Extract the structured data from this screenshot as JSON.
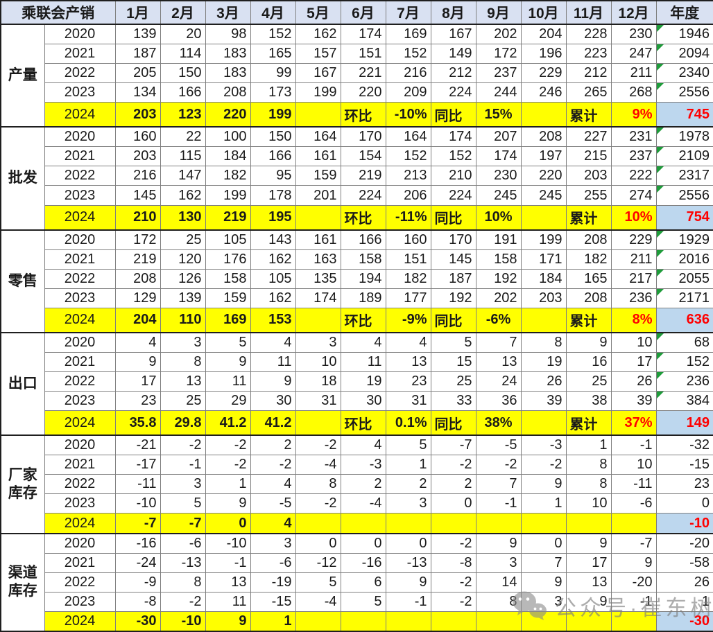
{
  "chart_data": {
    "type": "table",
    "title": "乘联会产销",
    "months": [
      "1月",
      "2月",
      "3月",
      "4月",
      "5月",
      "6月",
      "7月",
      "8月",
      "9月",
      "10月",
      "11月",
      "12月"
    ],
    "annual_label": "年度",
    "sections": [
      {
        "label": "产量",
        "annual_flags": true,
        "rows": [
          {
            "year": "2020",
            "cells": [
              "139",
              "20",
              "98",
              "152",
              "162",
              "174",
              "169",
              "167",
              "202",
              "204",
              "228",
              "230"
            ],
            "annual": "1946"
          },
          {
            "year": "2021",
            "cells": [
              "187",
              "114",
              "183",
              "165",
              "157",
              "151",
              "152",
              "149",
              "172",
              "196",
              "223",
              "247"
            ],
            "annual": "2094"
          },
          {
            "year": "2022",
            "cells": [
              "205",
              "150",
              "183",
              "99",
              "167",
              "221",
              "216",
              "212",
              "237",
              "229",
              "212",
              "211"
            ],
            "annual": "2340"
          },
          {
            "year": "2023",
            "cells": [
              "134",
              "166",
              "208",
              "173",
              "199",
              "220",
              "209",
              "224",
              "244",
              "246",
              "265",
              "268"
            ],
            "annual": "2556"
          },
          {
            "year": "2024",
            "cells": [
              "203",
              "123",
              "220",
              "199",
              "",
              "环比",
              "-10%",
              "同比",
              "15%",
              "",
              "累计",
              "9%"
            ],
            "annual": "745"
          }
        ]
      },
      {
        "label": "批发",
        "annual_flags": true,
        "rows": [
          {
            "year": "2020",
            "cells": [
              "160",
              "22",
              "100",
              "150",
              "164",
              "170",
              "164",
              "174",
              "207",
              "208",
              "227",
              "231"
            ],
            "annual": "1978"
          },
          {
            "year": "2021",
            "cells": [
              "203",
              "115",
              "184",
              "166",
              "161",
              "154",
              "152",
              "152",
              "174",
              "197",
              "215",
              "237"
            ],
            "annual": "2109"
          },
          {
            "year": "2022",
            "cells": [
              "216",
              "147",
              "182",
              "95",
              "159",
              "219",
              "213",
              "210",
              "230",
              "220",
              "203",
              "222"
            ],
            "annual": "2317"
          },
          {
            "year": "2023",
            "cells": [
              "145",
              "162",
              "199",
              "178",
              "201",
              "224",
              "206",
              "224",
              "245",
              "245",
              "255",
              "274"
            ],
            "annual": "2556"
          },
          {
            "year": "2024",
            "cells": [
              "210",
              "130",
              "219",
              "195",
              "",
              "环比",
              "-11%",
              "同比",
              "10%",
              "",
              "累计",
              "10%"
            ],
            "annual": "754"
          }
        ]
      },
      {
        "label": "零售",
        "annual_flags": true,
        "rows": [
          {
            "year": "2020",
            "cells": [
              "172",
              "25",
              "105",
              "143",
              "161",
              "166",
              "160",
              "170",
              "191",
              "199",
              "208",
              "229"
            ],
            "annual": "1929"
          },
          {
            "year": "2021",
            "cells": [
              "219",
              "120",
              "176",
              "162",
              "163",
              "158",
              "151",
              "145",
              "158",
              "171",
              "182",
              "211"
            ],
            "annual": "2016"
          },
          {
            "year": "2022",
            "cells": [
              "208",
              "126",
              "158",
              "105",
              "135",
              "194",
              "182",
              "187",
              "192",
              "184",
              "165",
              "217"
            ],
            "annual": "2055"
          },
          {
            "year": "2023",
            "cells": [
              "129",
              "139",
              "159",
              "162",
              "174",
              "189",
              "177",
              "192",
              "202",
              "203",
              "208",
              "236"
            ],
            "annual": "2171"
          },
          {
            "year": "2024",
            "cells": [
              "204",
              "110",
              "169",
              "153",
              "",
              "环比",
              "-9%",
              "同比",
              "-6%",
              "",
              "累计",
              "8%"
            ],
            "annual": "636"
          }
        ]
      },
      {
        "label": "出口",
        "annual_flags": true,
        "rows": [
          {
            "year": "2020",
            "cells": [
              "4",
              "3",
              "5",
              "4",
              "3",
              "4",
              "4",
              "5",
              "7",
              "8",
              "9",
              "10"
            ],
            "annual": "68"
          },
          {
            "year": "2021",
            "cells": [
              "9",
              "8",
              "9",
              "11",
              "10",
              "11",
              "13",
              "15",
              "13",
              "19",
              "16",
              "17"
            ],
            "annual": "152"
          },
          {
            "year": "2022",
            "cells": [
              "17",
              "13",
              "11",
              "9",
              "18",
              "19",
              "23",
              "25",
              "24",
              "26",
              "25",
              "26"
            ],
            "annual": "236"
          },
          {
            "year": "2023",
            "cells": [
              "23",
              "25",
              "29",
              "30",
              "31",
              "30",
              "31",
              "33",
              "36",
              "39",
              "38",
              "39"
            ],
            "annual": "384"
          },
          {
            "year": "2024",
            "cells": [
              "35.8",
              "29.8",
              "41.2",
              "41.2",
              "",
              "环比",
              "0.1%",
              "同比",
              "38%",
              "",
              "累计",
              "37%"
            ],
            "annual": "149"
          }
        ]
      },
      {
        "label": "厂家库存",
        "annual_flags": false,
        "rows": [
          {
            "year": "2020",
            "cells": [
              "-21",
              "-2",
              "-2",
              "2",
              "-2",
              "4",
              "5",
              "-7",
              "-5",
              "-3",
              "1",
              "-1"
            ],
            "annual": "-32"
          },
          {
            "year": "2021",
            "cells": [
              "-17",
              "-1",
              "-2",
              "-2",
              "-4",
              "-3",
              "1",
              "-2",
              "-2",
              "-2",
              "8",
              "10"
            ],
            "annual": "-15"
          },
          {
            "year": "2022",
            "cells": [
              "-11",
              "3",
              "1",
              "4",
              "8",
              "2",
              "2",
              "2",
              "7",
              "9",
              "8",
              "-11"
            ],
            "annual": "23"
          },
          {
            "year": "2023",
            "cells": [
              "-10",
              "5",
              "9",
              "-5",
              "-2",
              "-4",
              "3",
              "0",
              "-1",
              "1",
              "10",
              "-6"
            ],
            "annual": "0"
          },
          {
            "year": "2024",
            "cells": [
              "-7",
              "-7",
              "0",
              "4",
              "",
              "",
              "",
              "",
              "",
              "",
              "",
              ""
            ],
            "annual": "-10"
          }
        ]
      },
      {
        "label": "渠道库存",
        "annual_flags": false,
        "rows": [
          {
            "year": "2020",
            "cells": [
              "-16",
              "-6",
              "-10",
              "3",
              "0",
              "0",
              "0",
              "-2",
              "9",
              "0",
              "9",
              "-7"
            ],
            "annual": "-20"
          },
          {
            "year": "2021",
            "cells": [
              "-24",
              "-13",
              "-1",
              "-6",
              "-12",
              "-16",
              "-13",
              "-8",
              "3",
              "7",
              "17",
              "9"
            ],
            "annual": "-58"
          },
          {
            "year": "2022",
            "cells": [
              "-9",
              "8",
              "13",
              "-19",
              "5",
              "6",
              "9",
              "-2",
              "14",
              "9",
              "13",
              "-20"
            ],
            "annual": "26"
          },
          {
            "year": "2023",
            "cells": [
              "-8",
              "-2",
              "11",
              "-15",
              "-4",
              "5",
              "-1",
              "-2",
              "8",
              "3",
              "9",
              "-1"
            ],
            "annual": "1"
          },
          {
            "year": "2024",
            "cells": [
              "-30",
              "-10",
              "9",
              "1",
              "",
              "",
              "",
              "",
              "",
              "",
              "",
              ""
            ],
            "annual": "-30"
          }
        ]
      }
    ]
  },
  "watermark": {
    "icon": "wechat-icon",
    "text": "公众号·崔东树"
  },
  "colors": {
    "header_bg": "#D9E1F2",
    "highlight_row": "#FFFF00",
    "annual_2024_bg": "#BDD7EE",
    "alert_text": "#FF0000",
    "flag_green": "#1E9C3A"
  }
}
